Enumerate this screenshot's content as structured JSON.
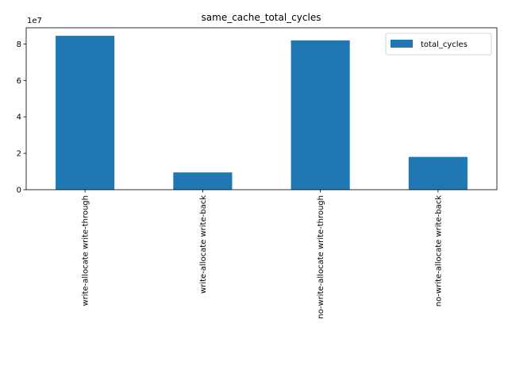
{
  "chart_data": {
    "type": "bar",
    "title": "same_cache_total_cycles",
    "xlabel": "",
    "ylabel": "",
    "categories": [
      "write-allocate write-through",
      "write-allocate write-back",
      "no-write-allocate write-through",
      "no-write-allocate write-back"
    ],
    "series": [
      {
        "name": "total_cycles",
        "values": [
          84500000,
          9500000,
          82000000,
          18000000
        ],
        "color": "#1f77b4"
      }
    ],
    "ylim": [
      0,
      88900000
    ],
    "yticks": [
      0,
      20000000,
      40000000,
      60000000,
      80000000
    ],
    "ytick_labels": [
      "0",
      "2",
      "4",
      "6",
      "8"
    ],
    "y_offset_label": "1e7",
    "legend_position": "top-right",
    "grid": false
  }
}
